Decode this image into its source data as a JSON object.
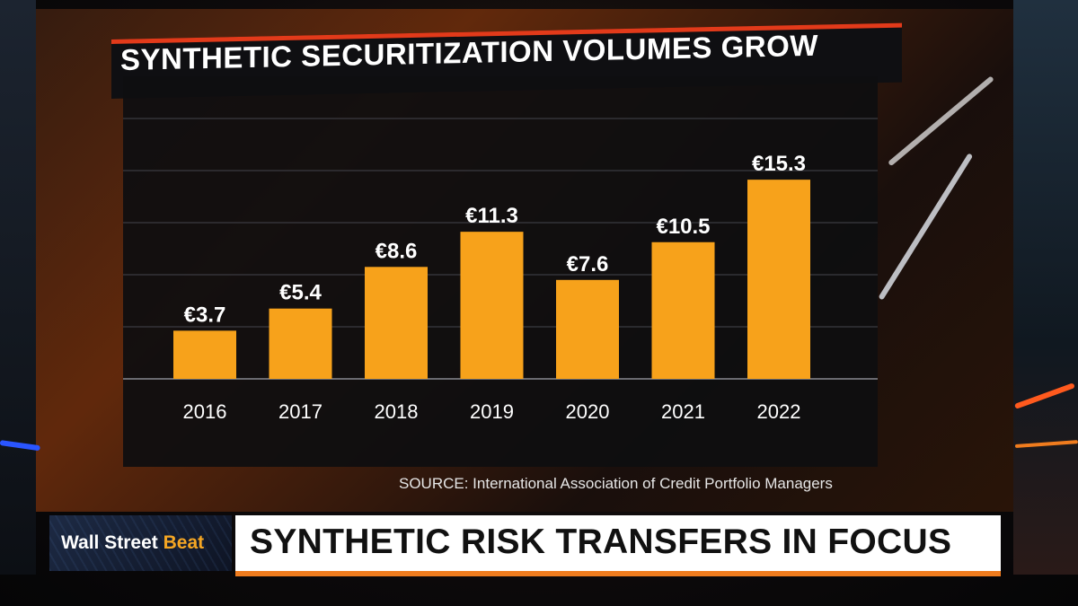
{
  "chart_data": {
    "type": "bar",
    "title": "SYNTHETIC SECURITIZATION VOLUMES GROW",
    "categories": [
      "2016",
      "2017",
      "2018",
      "2019",
      "2020",
      "2021",
      "2022"
    ],
    "values": [
      3.7,
      5.4,
      8.6,
      11.3,
      7.6,
      10.5,
      15.3
    ],
    "value_labels": [
      "€3.7",
      "€5.4",
      "€8.6",
      "€11.3",
      "€7.6",
      "€10.5",
      "€15.3"
    ],
    "xlabel": "",
    "ylabel": "",
    "ylim": [
      0,
      20
    ],
    "grid": true,
    "legend": "none",
    "bar_color": "#f7a21b",
    "source": "SOURCE: International Association of Credit Portfolio Managers"
  },
  "lower_third": {
    "brand_part1": "Wall Street",
    "brand_part2": "Beat",
    "headline": "SYNTHETIC RISK TRANSFERS IN FOCUS"
  },
  "colors": {
    "accent_red": "#e23a1a",
    "accent_orange": "#f07c1e",
    "brand_accent": "#f5a623"
  }
}
